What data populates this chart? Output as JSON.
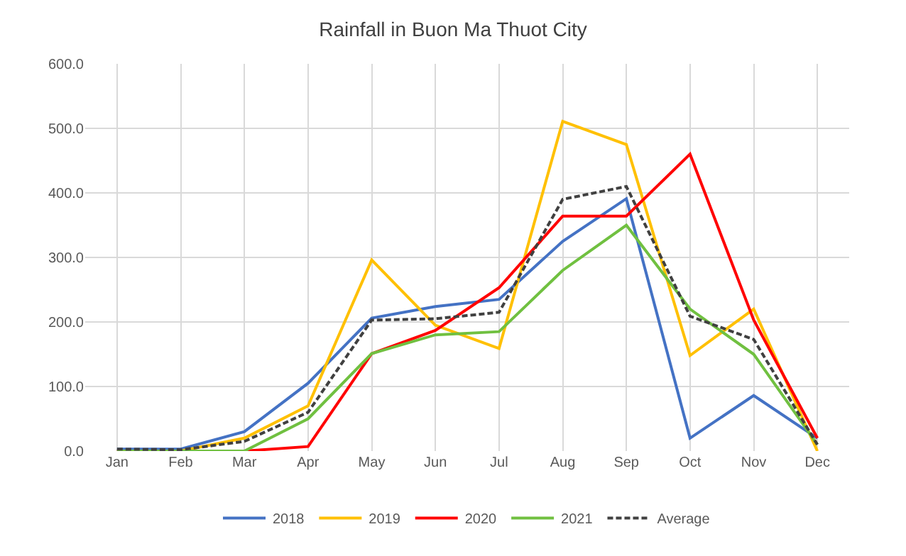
{
  "chart_data": {
    "type": "line",
    "title": "Rainfall in Buon Ma Thuot City",
    "categories": [
      "Jan",
      "Feb",
      "Mar",
      "Apr",
      "May",
      "Jun",
      "Jul",
      "Aug",
      "Sep",
      "Oct",
      "Nov",
      "Dec"
    ],
    "series": [
      {
        "name": "2018",
        "color": "#4472c4",
        "values": [
          3,
          3,
          30,
          105,
          206,
          224,
          235,
          325,
          391,
          20,
          86,
          20
        ]
      },
      {
        "name": "2019",
        "color": "#ffc000",
        "values": [
          0,
          0,
          20,
          70,
          296,
          195,
          159,
          511,
          475,
          148,
          220,
          0
        ]
      },
      {
        "name": "2020",
        "color": "#ff0000",
        "values": [
          0,
          0,
          0,
          7,
          151,
          187,
          253,
          364,
          364,
          460,
          203,
          20
        ]
      },
      {
        "name": "2021",
        "color": "#70c040",
        "values": [
          0,
          0,
          0,
          50,
          151,
          180,
          185,
          280,
          350,
          220,
          150,
          10
        ]
      },
      {
        "name": "Average",
        "color": "#404040",
        "line_style": "dashed",
        "values": [
          3,
          2,
          15,
          60,
          203,
          205,
          215,
          390,
          410,
          209,
          173,
          10
        ]
      }
    ],
    "ylim": [
      0,
      600
    ],
    "yticks": [
      {
        "value": 0,
        "label": "0.0"
      },
      {
        "value": 100,
        "label": "100.0"
      },
      {
        "value": 200,
        "label": "200.0"
      },
      {
        "value": 300,
        "label": "300.0"
      },
      {
        "value": 400,
        "label": "400.0"
      },
      {
        "value": 500,
        "label": "500.0"
      },
      {
        "value": 600,
        "label": "600.0"
      }
    ],
    "grid": true,
    "legend": "bottom",
    "marker": "none",
    "line_style": "solid"
  }
}
